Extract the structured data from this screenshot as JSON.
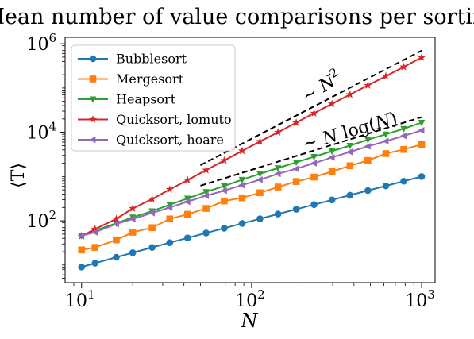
{
  "chart_data": {
    "type": "line",
    "title": "Mean number of value comparisons per sorting",
    "xlabel": "N",
    "ylabel": "⟨T⟩",
    "xscale": "log",
    "yscale": "log",
    "xlim": [
      8,
      1200
    ],
    "ylim": [
      4,
      1400000
    ],
    "x_ticks": [
      {
        "value": 10,
        "label": "10^1"
      },
      {
        "value": 100,
        "label": "10^2"
      },
      {
        "value": 1000,
        "label": "10^3"
      }
    ],
    "y_ticks": [
      {
        "value": 100,
        "label": "10^2"
      },
      {
        "value": 10000,
        "label": "10^4"
      },
      {
        "value": 1000000,
        "label": "10^6"
      }
    ],
    "legend_position": "upper-left",
    "x": [
      10,
      12,
      16,
      20,
      26,
      33,
      42,
      54,
      69,
      88,
      112,
      143,
      183,
      233,
      297,
      379,
      483,
      616,
      785,
      1000
    ],
    "series": [
      {
        "name": "Bubblesort",
        "color": "#1f77b4",
        "marker": "circle",
        "values": [
          9,
          11,
          15,
          19,
          25,
          32,
          41,
          53,
          68,
          87,
          111,
          142,
          182,
          232,
          296,
          378,
          482,
          615,
          784,
          999
        ]
      },
      {
        "name": "Mergesort",
        "color": "#ff7f0e",
        "marker": "square",
        "values": [
          22,
          25,
          37,
          55,
          70,
          110,
          140,
          190,
          280,
          330,
          430,
          580,
          770,
          970,
          1300,
          1750,
          2300,
          3300,
          4100,
          5300
        ]
      },
      {
        "name": "Heapsort",
        "color": "#2ca02c",
        "marker": "triangle-down",
        "values": [
          46,
          60,
          88,
          120,
          165,
          230,
          320,
          450,
          610,
          850,
          1150,
          1550,
          2100,
          2800,
          3750,
          5000,
          6800,
          9000,
          12000,
          16500
        ]
      },
      {
        "name": "Quicksort, lomuto",
        "color": "#d62728",
        "marker": "star",
        "values": [
          45,
          65,
          110,
          190,
          310,
          510,
          830,
          1400,
          2300,
          3800,
          6200,
          10000,
          16500,
          27000,
          44000,
          71000,
          115000,
          185000,
          300000,
          490000
        ]
      },
      {
        "name": "Quicksort, hoare",
        "color": "#9467bd",
        "marker": "triangle-left",
        "values": [
          46,
          55,
          85,
          110,
          150,
          200,
          270,
          370,
          480,
          640,
          850,
          1150,
          1500,
          2000,
          2700,
          3600,
          4800,
          6300,
          8300,
          11000
        ]
      }
    ],
    "reference_lines": [
      {
        "label": "∼ N^2",
        "color": "#000000",
        "style": "dashed",
        "x": [
          50,
          1000
        ],
        "y": [
          1800,
          700000
        ]
      },
      {
        "label": "∼ N log(N)",
        "color": "#000000",
        "style": "dashed",
        "x": [
          50,
          1000
        ],
        "y": [
          620,
          22000
        ]
      }
    ]
  }
}
